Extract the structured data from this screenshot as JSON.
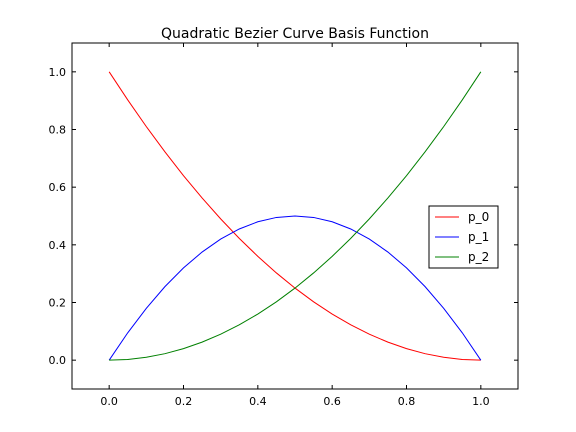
{
  "chart_data": {
    "type": "line",
    "title": "Quadratic Bezier Curve Basis Function",
    "xlabel": "",
    "ylabel": "",
    "xlim": [
      -0.1,
      1.1
    ],
    "ylim": [
      -0.1,
      1.1
    ],
    "xticks": [
      0.0,
      0.2,
      0.4,
      0.6,
      0.8,
      1.0
    ],
    "xtick_labels": [
      "0.0",
      "0.2",
      "0.4",
      "0.6",
      "0.8",
      "1.0"
    ],
    "yticks": [
      0.0,
      0.2,
      0.4,
      0.6,
      0.8,
      1.0
    ],
    "ytick_labels": [
      "0.0",
      "0.2",
      "0.4",
      "0.6",
      "0.8",
      "1.0"
    ],
    "grid": false,
    "legend_position": "center-right",
    "x": [
      0.0,
      0.05,
      0.1,
      0.15,
      0.2,
      0.25,
      0.3,
      0.35,
      0.4,
      0.45,
      0.5,
      0.55,
      0.6,
      0.65,
      0.7,
      0.75,
      0.8,
      0.85,
      0.9,
      0.95,
      1.0
    ],
    "series": [
      {
        "name": "p_0",
        "color": "#ff0000",
        "values": [
          1.0,
          0.9025,
          0.81,
          0.7225,
          0.64,
          0.5625,
          0.49,
          0.4225,
          0.36,
          0.3025,
          0.25,
          0.2025,
          0.16,
          0.1225,
          0.09,
          0.0625,
          0.04,
          0.0225,
          0.01,
          0.0025,
          0.0
        ]
      },
      {
        "name": "p_1",
        "color": "#0000ff",
        "values": [
          0.0,
          0.095,
          0.18,
          0.255,
          0.32,
          0.375,
          0.42,
          0.455,
          0.48,
          0.495,
          0.5,
          0.495,
          0.48,
          0.455,
          0.42,
          0.375,
          0.32,
          0.255,
          0.18,
          0.095,
          0.0
        ]
      },
      {
        "name": "p_2",
        "color": "#008000",
        "values": [
          0.0,
          0.0025,
          0.01,
          0.0225,
          0.04,
          0.0625,
          0.09,
          0.1225,
          0.16,
          0.2025,
          0.25,
          0.3025,
          0.36,
          0.4225,
          0.49,
          0.5625,
          0.64,
          0.7225,
          0.81,
          0.9025,
          1.0
        ]
      }
    ]
  }
}
